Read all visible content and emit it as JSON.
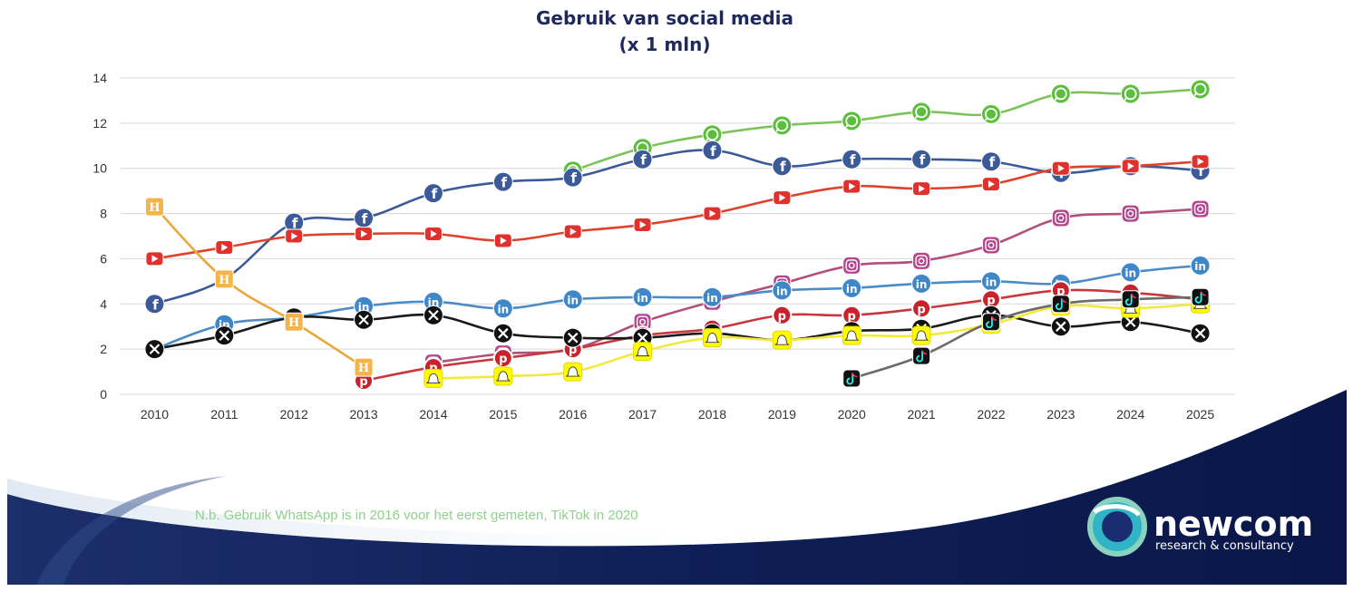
{
  "note": "N.b. Gebruik WhatsApp is in 2016 voor het eerst gemeten, TikTok in 2020",
  "logo": {
    "name": "newcom",
    "tagline": "research & consultancy"
  },
  "chart_data": {
    "type": "line",
    "title": [
      "Gebruik van social media",
      "(x 1 mln)"
    ],
    "xlabel": "",
    "ylabel": "",
    "ylim": [
      0,
      14
    ],
    "yticks": [
      0,
      2,
      4,
      6,
      8,
      10,
      12,
      14
    ],
    "grid": true,
    "legend": "none (icons on markers)",
    "x": [
      "2010",
      "2011",
      "2012",
      "2013",
      "2014",
      "2015",
      "2016",
      "2017",
      "2018",
      "2019",
      "2020",
      "2021",
      "2022",
      "2023",
      "2024",
      "2025"
    ],
    "series": [
      {
        "icon": "whatsapp-icon",
        "color": "#7cc35b",
        "values": [
          null,
          null,
          null,
          null,
          null,
          null,
          9.9,
          10.9,
          11.5,
          11.9,
          12.1,
          12.5,
          12.4,
          13.3,
          13.3,
          13.5
        ]
      },
      {
        "icon": "facebook-icon",
        "color": "#3d5a98",
        "values": [
          4.0,
          5.1,
          7.6,
          7.8,
          8.9,
          9.4,
          9.6,
          10.4,
          10.8,
          10.1,
          10.4,
          10.4,
          10.3,
          9.8,
          10.1,
          9.9
        ]
      },
      {
        "icon": "youtube-icon",
        "color": "#e0412c",
        "values": [
          6.0,
          6.5,
          7.0,
          7.1,
          7.1,
          6.8,
          7.2,
          7.5,
          8.0,
          8.7,
          9.2,
          9.1,
          9.3,
          10.0,
          10.1,
          10.3
        ]
      },
      {
        "icon": "instagram-icon",
        "color": "#b24f7a",
        "values": [
          null,
          null,
          null,
          null,
          1.4,
          1.8,
          2.0,
          3.2,
          4.1,
          4.9,
          5.7,
          5.9,
          6.6,
          7.8,
          8.0,
          8.2
        ]
      },
      {
        "icon": "linkedin-icon",
        "color": "#4b8cc8",
        "values": [
          2.0,
          3.1,
          3.4,
          3.9,
          4.1,
          3.8,
          4.2,
          4.3,
          4.3,
          4.6,
          4.7,
          4.9,
          5.0,
          4.9,
          5.4,
          5.7
        ]
      },
      {
        "icon": "pinterest-icon",
        "color": "#c8373d",
        "values": [
          null,
          null,
          null,
          0.6,
          1.2,
          1.6,
          2.0,
          2.6,
          2.9,
          3.5,
          3.5,
          3.8,
          4.2,
          4.6,
          4.5,
          4.2
        ]
      },
      {
        "icon": "x-icon",
        "color": "#1a1a1a",
        "values": [
          2.0,
          2.6,
          3.4,
          3.3,
          3.5,
          2.7,
          2.5,
          2.5,
          2.7,
          2.4,
          2.8,
          2.9,
          3.5,
          3.0,
          3.2,
          2.7
        ]
      },
      {
        "icon": "snapchat-icon",
        "color": "#f2ea3a",
        "values": [
          null,
          null,
          null,
          null,
          0.7,
          0.8,
          1.0,
          1.9,
          2.5,
          2.4,
          2.6,
          2.6,
          3.1,
          3.9,
          3.8,
          4.0
        ]
      },
      {
        "icon": "tiktok-icon",
        "color": "#6b6b6b",
        "values": [
          null,
          null,
          null,
          null,
          null,
          null,
          null,
          null,
          null,
          null,
          0.7,
          1.7,
          3.2,
          4.0,
          4.2,
          4.3
        ]
      },
      {
        "icon": "hyves-icon",
        "color": "#e9a83b",
        "values": [
          8.3,
          5.1,
          3.2,
          1.2,
          null,
          null,
          null,
          null,
          null,
          null,
          null,
          null,
          null,
          null,
          null,
          null
        ]
      }
    ]
  }
}
